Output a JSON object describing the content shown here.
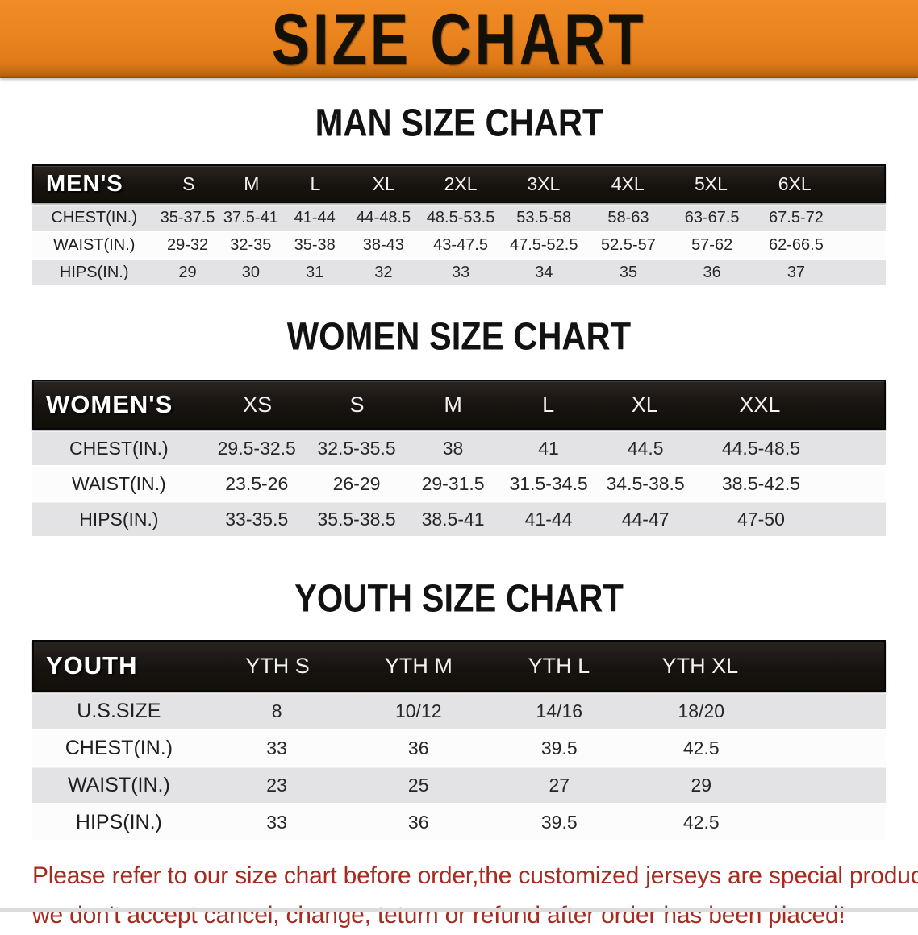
{
  "banner": {
    "title": "SIZE CHART",
    "bg_color": "#E8841F",
    "text_color": "#131008"
  },
  "colors": {
    "header_bar": "#171310",
    "row_gray": "#E3E3E5",
    "row_white": "#FCFCFC",
    "note_red": "#A82A1F"
  },
  "tables": [
    {
      "id": "men",
      "title": "MAN SIZE CHART",
      "header_label": "MEN'S",
      "columns": [
        "S",
        "M",
        "L",
        "XL",
        "2XL",
        "3XL",
        "4XL",
        "5XL",
        "6XL"
      ],
      "rows": [
        {
          "label": "CHEST(IN.)",
          "values": [
            "35-37.5",
            "37.5-41",
            "41-44",
            "44-48.5",
            "48.5-53.5",
            "53.5-58",
            "58-63",
            "63-67.5",
            "67.5-72"
          ]
        },
        {
          "label": "WAIST(IN.)",
          "values": [
            "29-32",
            "32-35",
            "35-38",
            "38-43",
            "43-47.5",
            "47.5-52.5",
            "52.5-57",
            "57-62",
            "62-66.5"
          ]
        },
        {
          "label": "HIPS(IN.)",
          "values": [
            "29",
            "30",
            "31",
            "32",
            "33",
            "34",
            "35",
            "36",
            "37"
          ]
        }
      ]
    },
    {
      "id": "women",
      "title": "WOMEN SIZE CHART",
      "header_label": "WOMEN'S",
      "columns": [
        "XS",
        "S",
        "M",
        "L",
        "XL",
        "XXL"
      ],
      "rows": [
        {
          "label": "CHEST(IN.)",
          "values": [
            "29.5-32.5",
            "32.5-35.5",
            "38",
            "41",
            "44.5",
            "44.5-48.5"
          ]
        },
        {
          "label": "WAIST(IN.)",
          "values": [
            "23.5-26",
            "26-29",
            "29-31.5",
            "31.5-34.5",
            "34.5-38.5",
            "38.5-42.5"
          ]
        },
        {
          "label": "HIPS(IN.)",
          "values": [
            "33-35.5",
            "35.5-38.5",
            "38.5-41",
            "41-44",
            "44-47",
            "47-50"
          ]
        }
      ]
    },
    {
      "id": "youth",
      "title": "YOUTH SIZE CHART",
      "header_label": "YOUTH",
      "columns": [
        "YTH S",
        "YTH M",
        "YTH L",
        "YTH XL"
      ],
      "rows": [
        {
          "label": "U.S.SIZE",
          "values": [
            "8",
            "10/12",
            "14/16",
            "18/20"
          ]
        },
        {
          "label": "CHEST(IN.)",
          "values": [
            "33",
            "36",
            "39.5",
            "42.5"
          ]
        },
        {
          "label": "WAIST(IN.)",
          "values": [
            "23",
            "25",
            "27",
            "29"
          ]
        },
        {
          "label": "HIPS(IN.)",
          "values": [
            "33",
            "36",
            "39.5",
            "42.5"
          ]
        }
      ]
    }
  ],
  "footer": {
    "line1": "Please refer to our size chart before order,the customized jerseys are special products,",
    "line2": "we don't accept cancel, change, teturn or refund after order has been placed!"
  }
}
